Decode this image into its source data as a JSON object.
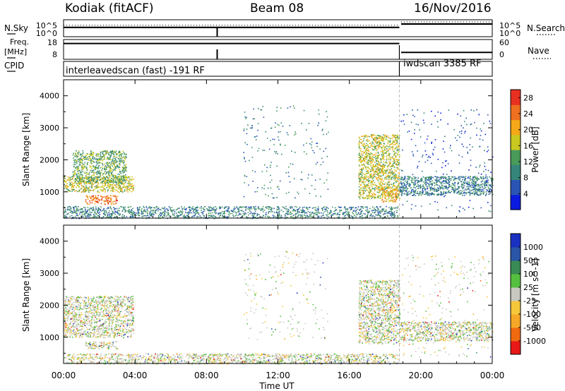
{
  "header": {
    "station": "Kodiak (fitACF)",
    "beam": "Beam 08",
    "date": "16/Nov/2016"
  },
  "side_labels": {
    "nsky": "N.Sky",
    "freq": "Freq.",
    "freq_unit": "[MHz]",
    "cpid": "CPID",
    "nsearch": "N.Search",
    "nave": "Nave",
    "nsky_tick_hi": "10^5",
    "nsky_tick_lo": "10^0",
    "nsearch_tick_hi": "10^5",
    "nsearch_tick_lo": "10^0",
    "freq_tick_hi": "18",
    "freq_tick_lo": "8",
    "nave_tick_hi": "60",
    "nave_tick_lo": "0"
  },
  "cpid_labels": {
    "first": "interleavedscan (fast) -191 RF",
    "second": "iwdscan 3385 RF"
  },
  "colors": {
    "power": [
      "#0a1adf",
      "#2a55b4",
      "#35857a",
      "#4a9a5a",
      "#c8c820",
      "#f5a818",
      "#ef7020",
      "#e83020"
    ],
    "velocity": [
      "#e81818",
      "#f06a10",
      "#f5a828",
      "#f5c83c",
      "#c8c8c0",
      "#55c040",
      "#3a8a55",
      "#2a55a8",
      "#1a30c0"
    ]
  },
  "chart_data": [
    {
      "type": "heatmap",
      "title": "",
      "xlabel": "",
      "ylabel": "Slant Range [km]",
      "x_ticks": [
        "00:00",
        "04:00",
        "08:00",
        "12:00",
        "16:00",
        "20:00",
        "00:00"
      ],
      "x_range_hours": [
        0,
        24
      ],
      "ylim": [
        180,
        4500
      ],
      "y_ticks": [
        1000,
        2000,
        3000,
        4000
      ],
      "colorbar": {
        "label": "Power [dB]",
        "ticks": [
          "4",
          "8",
          "12",
          "16",
          "20",
          "24",
          "28"
        ],
        "range": [
          0,
          30
        ]
      },
      "mode_change_hour": 18.8,
      "regions": [
        {
          "name": "morning-band-lower",
          "t": [
            0.0,
            3.9
          ],
          "range_km": [
            1000,
            1500
          ],
          "power_db": 16
        },
        {
          "name": "morning-band-rising",
          "t": [
            0.5,
            3.5
          ],
          "range_km": [
            1300,
            2300
          ],
          "power_db": 12
        },
        {
          "name": "morning-low-range",
          "t": [
            1.2,
            3.0
          ],
          "range_km": [
            620,
            900
          ],
          "power_db": 26
        },
        {
          "name": "ground-near-range",
          "t": [
            0.0,
            18.7
          ],
          "range_km": [
            180,
            560
          ],
          "power_db": 8
        },
        {
          "name": "midday-sporadic",
          "t": [
            10.0,
            14.8
          ],
          "range_km": [
            800,
            3700
          ],
          "power_db": 10
        },
        {
          "name": "evening-band",
          "t": [
            16.5,
            18.8
          ],
          "range_km": [
            800,
            2800
          ],
          "power_db": 16
        },
        {
          "name": "evening-hot",
          "t": [
            17.8,
            18.7
          ],
          "range_km": [
            700,
            1100
          ],
          "power_db": 22
        },
        {
          "name": "night-band",
          "t": [
            18.8,
            24.0
          ],
          "range_km": [
            900,
            1500
          ],
          "power_db": 10
        },
        {
          "name": "night-scatter",
          "t": [
            18.8,
            24.0
          ],
          "range_km": [
            400,
            3600
          ],
          "power_db": 6
        }
      ]
    },
    {
      "type": "heatmap",
      "title": "",
      "xlabel": "Time UT",
      "ylabel": "Slant Range [km]",
      "x_ticks": [
        "00:00",
        "04:00",
        "08:00",
        "12:00",
        "16:00",
        "20:00",
        "00:00"
      ],
      "x_range_hours": [
        0,
        24
      ],
      "ylim": [
        180,
        4500
      ],
      "y_ticks": [
        1000,
        2000,
        3000,
        4000
      ],
      "colorbar": {
        "label": "Velocity [m s^-1]",
        "ticks": [
          "1000",
          "500",
          "100",
          "25",
          "-25",
          "-100",
          "-500",
          "-1000"
        ]
      },
      "mode_change_hour": 18.8,
      "regions": [
        {
          "name": "morning-band",
          "t": [
            0.0,
            3.9
          ],
          "range_km": [
            1000,
            2300
          ],
          "velocity_ms": 0
        },
        {
          "name": "morning-low-range",
          "t": [
            1.2,
            3.0
          ],
          "range_km": [
            650,
            880
          ],
          "velocity_ms": 0
        },
        {
          "name": "ground-near-range",
          "t": [
            0.0,
            18.7
          ],
          "range_km": [
            180,
            500
          ],
          "velocity_ms": -50
        },
        {
          "name": "midday-sporadic",
          "t": [
            10.0,
            14.8
          ],
          "range_km": [
            900,
            3700
          ],
          "velocity_ms": 0
        },
        {
          "name": "evening-band",
          "t": [
            16.5,
            18.8
          ],
          "range_km": [
            800,
            2800
          ],
          "velocity_ms": 0
        },
        {
          "name": "night-band",
          "t": [
            18.8,
            24.0
          ],
          "range_km": [
            900,
            1500
          ],
          "velocity_ms": -30
        },
        {
          "name": "night-scatter",
          "t": [
            18.8,
            24.0
          ],
          "range_km": [
            400,
            3600
          ],
          "velocity_ms": 0
        }
      ]
    },
    {
      "type": "line",
      "name_label": "N.Sky / N.Search",
      "x_range_hours": [
        0,
        24
      ],
      "segments": [
        {
          "t": [
            0.0,
            18.8
          ],
          "level": 0.55
        },
        {
          "t": [
            18.9,
            24.0
          ],
          "level": 0.75
        }
      ]
    },
    {
      "type": "line",
      "name_label": "Freq. / Nave",
      "x_range_hours": [
        0,
        24
      ],
      "segments": [
        {
          "t": [
            0.0,
            18.8
          ],
          "level": 0.8
        },
        {
          "t": [
            18.9,
            24.0
          ],
          "level": 0.35
        }
      ]
    }
  ]
}
